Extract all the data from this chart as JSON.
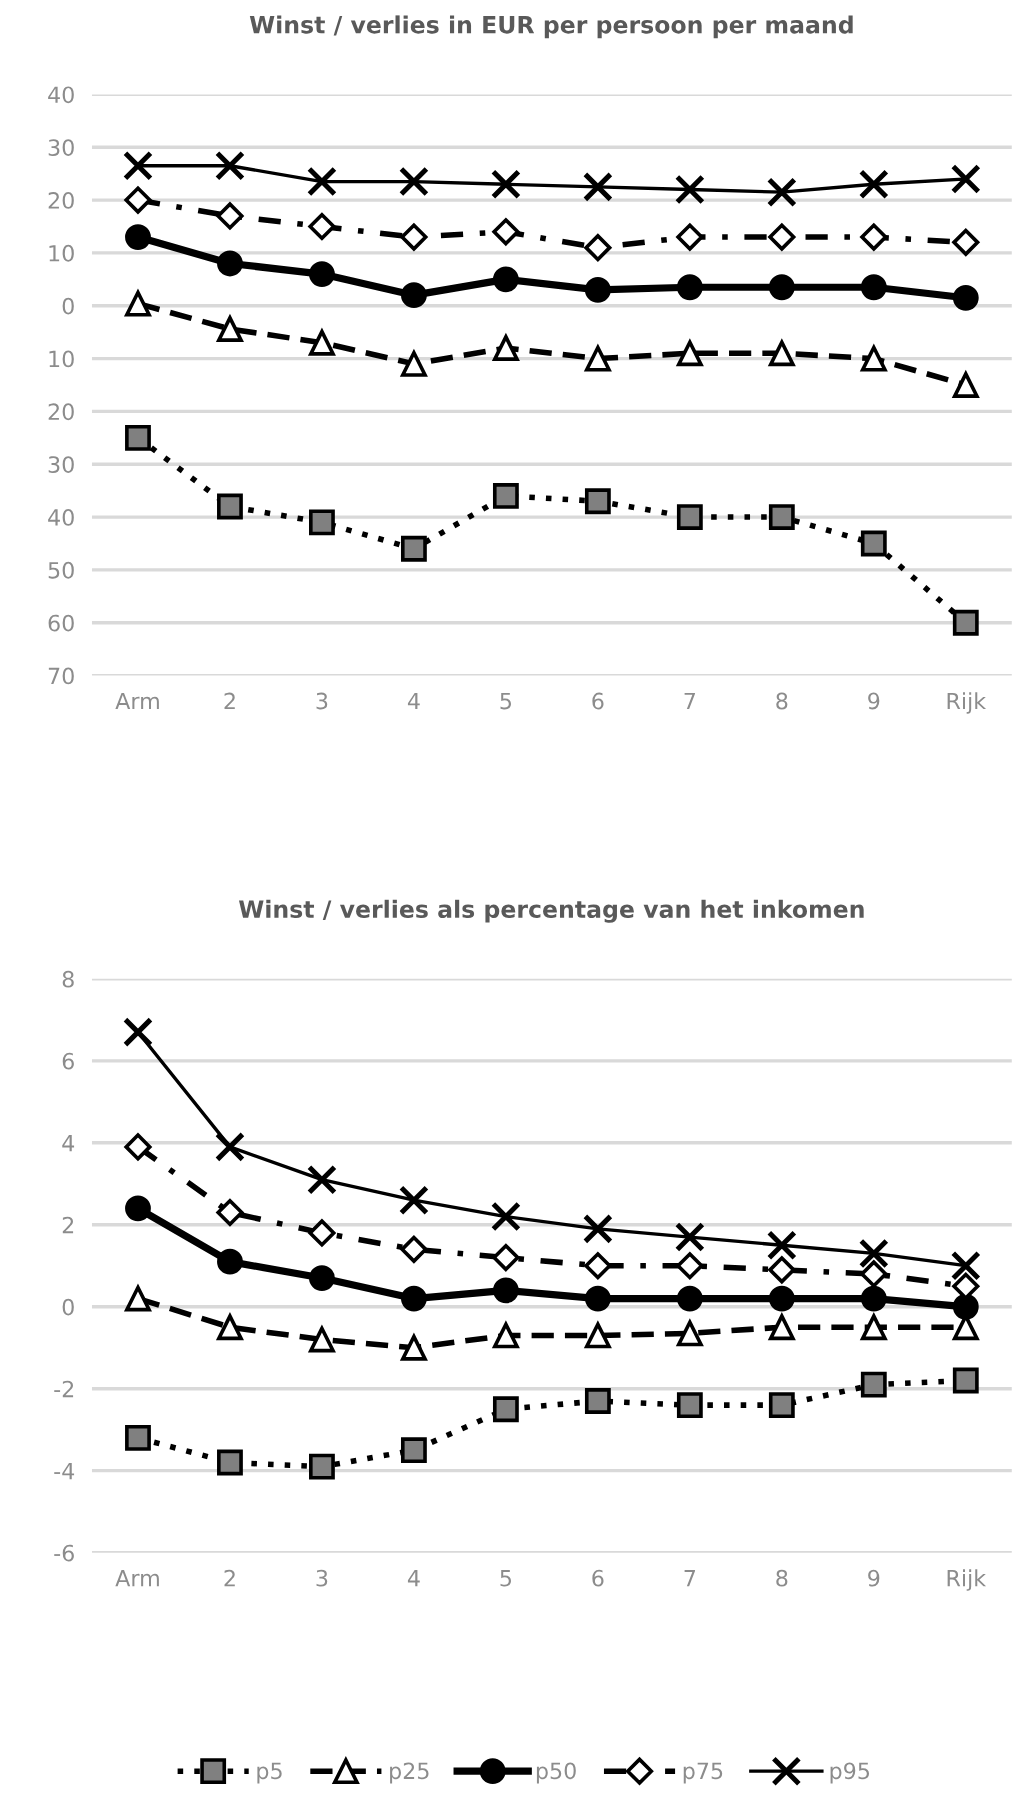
{
  "chart_data": [
    {
      "type": "line",
      "title": "Winst / verlies in EUR per persoon per maand",
      "categories": [
        "Arm",
        "2",
        "3",
        "4",
        "5",
        "6",
        "7",
        "8",
        "9",
        "Rijk"
      ],
      "ylim": [
        -70,
        40
      ],
      "yticks": [
        40,
        30,
        20,
        10,
        0,
        {
          "value": -10,
          "label": "10"
        },
        {
          "value": -20,
          "label": "20"
        },
        {
          "value": -30,
          "label": "30"
        },
        {
          "value": -40,
          "label": "40"
        },
        {
          "value": -50,
          "label": "50"
        },
        {
          "value": -60,
          "label": "60"
        },
        {
          "value": -70,
          "label": "70"
        }
      ],
      "grid": "y",
      "legend": false,
      "series": [
        {
          "color": "#000000",
          "marker": "square",
          "line_style": "dotted",
          "values": [
            -25,
            -38,
            -41,
            -46,
            -36,
            -37,
            -40,
            -40,
            -45,
            -60
          ]
        },
        {
          "color": "#000000",
          "marker": "triangle",
          "line_style": "dashed",
          "values": [
            0.4,
            -4.4,
            -7,
            -11,
            -8,
            -10,
            -9,
            -9,
            -10,
            -15
          ]
        },
        {
          "color": "#000000",
          "marker": "circle",
          "line_style": "solid",
          "values": [
            13,
            8,
            6,
            2,
            5,
            3,
            3.5,
            3.5,
            3.5,
            1.5
          ]
        },
        {
          "color": "#000000",
          "marker": "diamond",
          "line_style": "dashdot",
          "values": [
            20,
            17,
            15,
            13,
            14,
            11,
            13,
            13,
            13,
            12
          ]
        },
        {
          "color": "#000000",
          "marker": "cross",
          "line_style": "solid",
          "values": [
            26.5,
            26.5,
            23.5,
            23.5,
            23,
            22.5,
            22,
            21.5,
            23,
            24
          ]
        }
      ]
    },
    {
      "type": "line",
      "title": "Winst / verlies als percentage van het inkomen",
      "categories": [
        "Arm",
        "2",
        "3",
        "4",
        "5",
        "6",
        "7",
        "8",
        "9",
        "Rijk"
      ],
      "ylim": [
        -6,
        8
      ],
      "yticks": [
        8,
        6,
        4,
        2,
        0,
        {
          "value": -2,
          "label": "-2"
        },
        {
          "value": -4,
          "label": "-4"
        },
        {
          "value": -6,
          "label": "-6"
        }
      ],
      "grid": "y",
      "legend": "bottom",
      "series": [
        {
          "name": "p5",
          "color": "#000000",
          "marker": "square",
          "line_style": "dotted",
          "values": [
            -3.2,
            -3.8,
            -3.9,
            -3.5,
            -2.5,
            -2.3,
            -2.4,
            -2.4,
            -1.9,
            -1.8
          ]
        },
        {
          "name": "p25",
          "color": "#000000",
          "marker": "triangle",
          "line_style": "dashed",
          "values": [
            0.2,
            -0.5,
            -0.8,
            -1.0,
            -0.7,
            -0.7,
            -0.65,
            -0.5,
            -0.5,
            -0.5
          ]
        },
        {
          "name": "p50",
          "color": "#000000",
          "marker": "circle",
          "line_style": "solid",
          "values": [
            2.4,
            1.1,
            0.7,
            0.2,
            0.4,
            0.2,
            0.2,
            0.2,
            0.2,
            0.0
          ]
        },
        {
          "name": "p75",
          "color": "#000000",
          "marker": "diamond",
          "line_style": "dashdot",
          "values": [
            3.9,
            2.3,
            1.8,
            1.4,
            1.2,
            1.0,
            1.0,
            0.9,
            0.8,
            0.5
          ]
        },
        {
          "name": "p95",
          "color": "#000000",
          "marker": "cross",
          "line_style": "solid",
          "values": [
            6.7,
            3.9,
            3.1,
            2.6,
            2.2,
            1.9,
            1.7,
            1.5,
            1.3,
            1.0
          ]
        }
      ]
    }
  ]
}
